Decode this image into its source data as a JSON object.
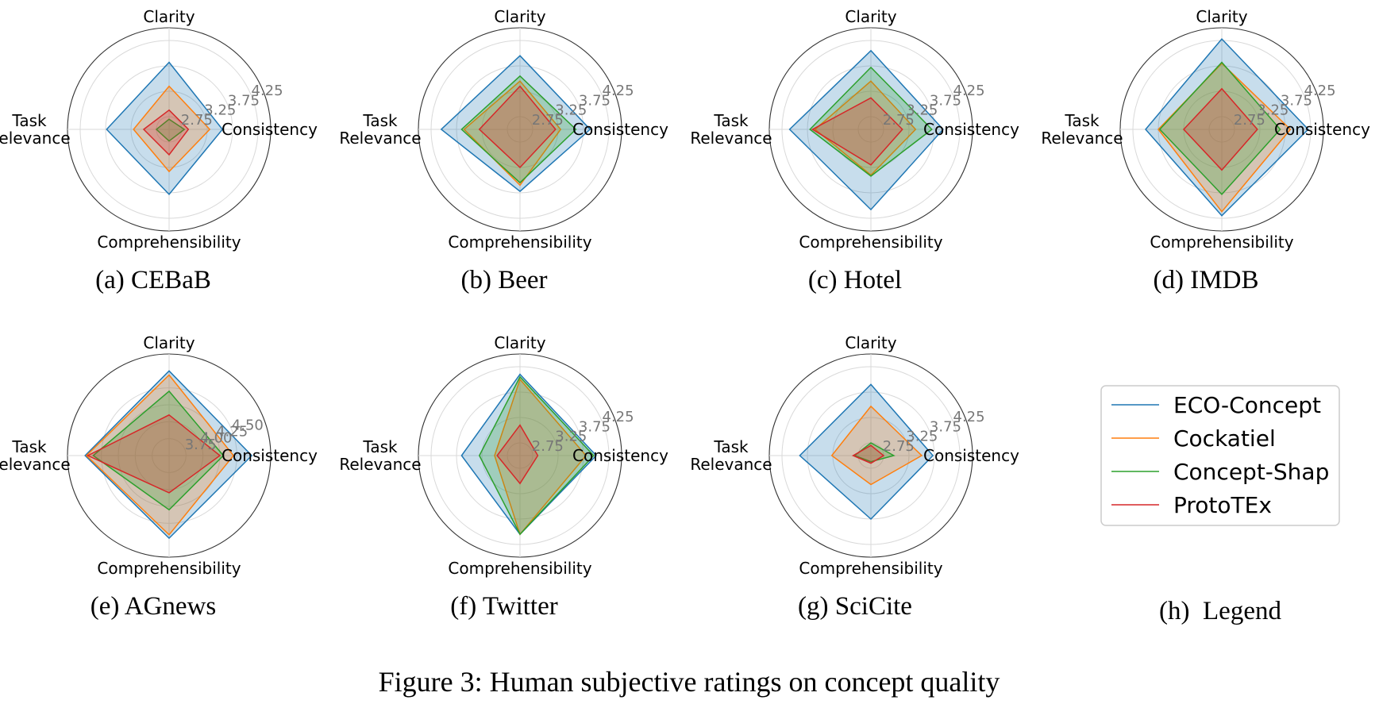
{
  "figure": {
    "caption": "Figure 3: Human subjective ratings on concept quality"
  },
  "axis_labels": [
    "Clarity",
    "Consistency",
    "Comprehensibility",
    "Task Relevance"
  ],
  "series_styles": [
    {
      "name": "ECO-Concept",
      "color": "#1f77b4"
    },
    {
      "name": "Cockatiel",
      "color": "#ff7f0e"
    },
    {
      "name": "Concept-Shap",
      "color": "#2ca02c"
    },
    {
      "name": "ProtoTEx",
      "color": "#d62728"
    }
  ],
  "legend": {
    "caption": "(h)  Legend",
    "entries": [
      "ECO-Concept",
      "Cockatiel",
      "Concept-Shap",
      "ProtoTEx"
    ]
  },
  "chart_data": [
    {
      "type": "radar",
      "caption": "(a)  CEBaB",
      "axes": [
        "Clarity",
        "Consistency",
        "Comprehensibility",
        "Task Relevance"
      ],
      "rlim": [
        2.5,
        4.5
      ],
      "rticks": [
        "2.75",
        "3.25",
        "3.75",
        "4.25"
      ],
      "series": [
        {
          "name": "ECO-Concept",
          "values": [
            3.82,
            3.55,
            3.78,
            3.73
          ]
        },
        {
          "name": "Cockatiel",
          "values": [
            3.35,
            3.3,
            3.33,
            3.2
          ]
        },
        {
          "name": "Concept-Shap",
          "values": [
            2.7,
            2.8,
            2.73,
            2.75
          ]
        },
        {
          "name": "ProtoTEx",
          "values": [
            2.88,
            2.88,
            3.0,
            3.0
          ]
        }
      ]
    },
    {
      "type": "radar",
      "caption": "(b)  Beer",
      "axes": [
        "Clarity",
        "Consistency",
        "Comprehensibility",
        "Task Relevance"
      ],
      "rlim": [
        2.5,
        4.5
      ],
      "rticks": [
        "2.75",
        "3.25",
        "3.75",
        "4.25"
      ],
      "series": [
        {
          "name": "ECO-Concept",
          "values": [
            3.95,
            3.88,
            3.72,
            4.05
          ]
        },
        {
          "name": "Cockatiel",
          "values": [
            3.45,
            3.3,
            3.6,
            3.6
          ]
        },
        {
          "name": "Concept-Shap",
          "values": [
            3.55,
            3.6,
            3.55,
            3.65
          ]
        },
        {
          "name": "ProtoTEx",
          "values": [
            3.35,
            3.2,
            3.25,
            3.3
          ]
        }
      ]
    },
    {
      "type": "radar",
      "caption": "(c)  Hotel",
      "axes": [
        "Clarity",
        "Consistency",
        "Comprehensibility",
        "Task Relevance"
      ],
      "rlim": [
        2.5,
        4.5
      ],
      "rticks": [
        "2.75",
        "3.25",
        "3.75",
        "4.25"
      ],
      "series": [
        {
          "name": "ECO-Concept",
          "values": [
            4.05,
            3.92,
            4.08,
            4.1
          ]
        },
        {
          "name": "Cockatiel",
          "values": [
            3.45,
            3.38,
            3.4,
            3.6
          ]
        },
        {
          "name": "Concept-Shap",
          "values": [
            3.72,
            3.7,
            3.42,
            3.7
          ]
        },
        {
          "name": "ProtoTEx",
          "values": [
            3.12,
            3.12,
            3.2,
            3.65
          ]
        }
      ]
    },
    {
      "type": "radar",
      "caption": "(d)  IMDB",
      "axes": [
        "Clarity",
        "Consistency",
        "Comprehensibility",
        "Task Relevance"
      ],
      "rlim": [
        2.5,
        4.5
      ],
      "rticks": [
        "2.75",
        "3.25",
        "3.75",
        "4.25"
      ],
      "series": [
        {
          "name": "ECO-Concept",
          "values": [
            4.28,
            4.2,
            4.2,
            4.0
          ]
        },
        {
          "name": "Cockatiel",
          "values": [
            3.8,
            3.85,
            4.12,
            3.75
          ]
        },
        {
          "name": "Concept-Shap",
          "values": [
            3.82,
            3.65,
            3.78,
            3.72
          ]
        },
        {
          "name": "ProtoTEx",
          "values": [
            3.3,
            3.2,
            3.3,
            3.25
          ]
        }
      ]
    },
    {
      "type": "radar",
      "caption": "(e)  AGnews",
      "axes": [
        "Clarity",
        "Consistency",
        "Comprehensibility",
        "Task Relevance"
      ],
      "rlim": [
        3.5,
        5.0
      ],
      "rticks": [
        "3.75",
        "4.00",
        "4.25",
        "4.50"
      ],
      "series": [
        {
          "name": "ECO-Concept",
          "values": [
            4.75,
            4.72,
            4.72,
            4.74
          ]
        },
        {
          "name": "Cockatiel",
          "values": [
            4.69,
            4.45,
            4.67,
            4.72
          ]
        },
        {
          "name": "Concept-Shap",
          "values": [
            4.45,
            4.3,
            4.3,
            4.62
          ]
        },
        {
          "name": "ProtoTEx",
          "values": [
            4.1,
            4.25,
            4.05,
            4.7
          ]
        }
      ]
    },
    {
      "type": "radar",
      "caption": "(f)  Twitter",
      "axes": [
        "Clarity",
        "Consistency",
        "Comprehensibility",
        "Task Relevance"
      ],
      "rlim": [
        2.5,
        4.5
      ],
      "rticks": [
        "2.75",
        "3.25",
        "3.75",
        "4.25"
      ],
      "series": [
        {
          "name": "ECO-Concept",
          "values": [
            4.1,
            4.0,
            4.05,
            3.65
          ]
        },
        {
          "name": "Cockatiel",
          "values": [
            4.0,
            3.8,
            4.05,
            3.0
          ]
        },
        {
          "name": "Concept-Shap",
          "values": [
            4.05,
            3.95,
            4.05,
            3.3
          ]
        },
        {
          "name": "ProtoTEx",
          "values": [
            3.1,
            2.85,
            3.05,
            2.95
          ]
        }
      ]
    },
    {
      "type": "radar",
      "caption": "(g)  SciCite",
      "axes": [
        "Clarity",
        "Consistency",
        "Comprehensibility",
        "Task Relevance"
      ],
      "rlim": [
        2.5,
        4.5
      ],
      "rticks": [
        "2.75",
        "3.25",
        "3.75",
        "4.25"
      ],
      "series": [
        {
          "name": "ECO-Concept",
          "values": [
            3.9,
            3.72,
            3.75,
            3.9
          ]
        },
        {
          "name": "Cockatiel",
          "values": [
            3.47,
            3.5,
            3.07,
            3.27
          ]
        },
        {
          "name": "Concept-Shap",
          "values": [
            2.75,
            2.95,
            2.62,
            2.82
          ]
        },
        {
          "name": "ProtoTEx",
          "values": [
            2.7,
            2.75,
            2.65,
            2.85
          ]
        }
      ]
    }
  ]
}
